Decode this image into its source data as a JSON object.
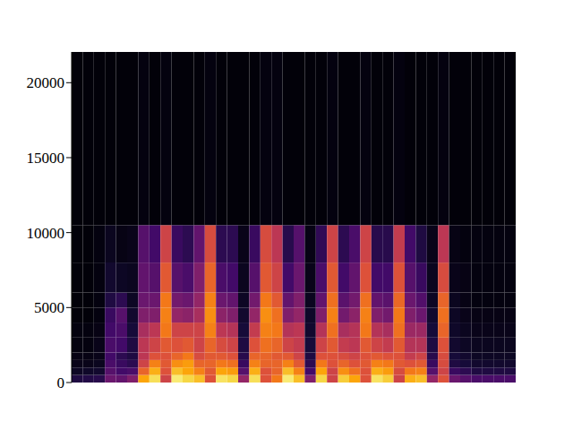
{
  "chart_data": {
    "type": "heatmap",
    "tick_labels": "y",
    "xlim": [
      0,
      4
    ],
    "ylim": [
      0,
      22050
    ],
    "yticks": [
      0,
      5000,
      10000,
      15000,
      20000
    ],
    "zlim": [
      0,
      1
    ],
    "x_bins": [
      0,
      0.1,
      0.2,
      0.3,
      0.4,
      0.5,
      0.6,
      0.7,
      0.8,
      0.9,
      1,
      1.1,
      1.2,
      1.3,
      1.4,
      1.5,
      1.6,
      1.7,
      1.8,
      1.9,
      2,
      2.1,
      2.2,
      2.3,
      2.4,
      2.5,
      2.6,
      2.7,
      2.8,
      2.9,
      3,
      3.1,
      3.2,
      3.3,
      3.4,
      3.5,
      3.6,
      3.7,
      3.8,
      3.9,
      4
    ],
    "y_bins": [
      0,
      500,
      1000,
      1500,
      2000,
      3000,
      4000,
      5000,
      6000,
      8000,
      10500,
      22050
    ],
    "cells": [
      [
        0.12,
        0.06,
        0.04,
        0.03,
        0.02,
        0.02,
        0.01,
        0.01,
        0.01,
        0.01,
        0.01
      ],
      [
        0.13,
        0.07,
        0.04,
        0.03,
        0.02,
        0.02,
        0.01,
        0.01,
        0.01,
        0.01,
        0.01
      ],
      [
        0.14,
        0.08,
        0.05,
        0.04,
        0.04,
        0.03,
        0.02,
        0.02,
        0.02,
        0.02,
        0.01
      ],
      [
        0.3,
        0.25,
        0.22,
        0.2,
        0.22,
        0.2,
        0.18,
        0.12,
        0.08,
        0.05,
        0.01
      ],
      [
        0.28,
        0.2,
        0.18,
        0.15,
        0.2,
        0.22,
        0.25,
        0.15,
        0.06,
        0.03,
        0.01
      ],
      [
        0.35,
        0.22,
        0.15,
        0.12,
        0.12,
        0.1,
        0.08,
        0.06,
        0.05,
        0.04,
        0.01
      ],
      [
        0.8,
        0.65,
        0.55,
        0.5,
        0.5,
        0.45,
        0.35,
        0.3,
        0.28,
        0.25,
        0.02
      ],
      [
        0.92,
        0.82,
        0.72,
        0.6,
        0.55,
        0.5,
        0.35,
        0.3,
        0.25,
        0.2,
        0.01
      ],
      [
        0.55,
        0.6,
        0.62,
        0.6,
        0.62,
        0.7,
        0.72,
        0.7,
        0.62,
        0.55,
        0.02
      ],
      [
        0.95,
        0.85,
        0.75,
        0.65,
        0.6,
        0.55,
        0.4,
        0.32,
        0.25,
        0.18,
        0.01
      ],
      [
        0.9,
        0.8,
        0.78,
        0.7,
        0.62,
        0.55,
        0.38,
        0.3,
        0.22,
        0.15,
        0.01
      ],
      [
        0.85,
        0.72,
        0.65,
        0.58,
        0.55,
        0.55,
        0.45,
        0.4,
        0.35,
        0.28,
        0.01
      ],
      [
        0.6,
        0.62,
        0.65,
        0.62,
        0.65,
        0.72,
        0.75,
        0.72,
        0.65,
        0.58,
        0.02
      ],
      [
        0.93,
        0.8,
        0.7,
        0.62,
        0.58,
        0.5,
        0.38,
        0.3,
        0.22,
        0.15,
        0.01
      ],
      [
        0.9,
        0.78,
        0.68,
        0.6,
        0.55,
        0.48,
        0.35,
        0.28,
        0.2,
        0.15,
        0.01
      ],
      [
        0.4,
        0.25,
        0.18,
        0.14,
        0.12,
        0.1,
        0.08,
        0.06,
        0.05,
        0.04,
        0.01
      ],
      [
        0.92,
        0.82,
        0.72,
        0.65,
        0.6,
        0.52,
        0.4,
        0.32,
        0.25,
        0.18,
        0.01
      ],
      [
        0.6,
        0.6,
        0.65,
        0.65,
        0.68,
        0.72,
        0.75,
        0.7,
        0.62,
        0.58,
        0.02
      ],
      [
        0.7,
        0.65,
        0.65,
        0.62,
        0.65,
        0.7,
        0.68,
        0.62,
        0.55,
        0.5,
        0.02
      ],
      [
        0.95,
        0.85,
        0.72,
        0.62,
        0.55,
        0.48,
        0.35,
        0.28,
        0.2,
        0.14,
        0.01
      ],
      [
        0.85,
        0.72,
        0.62,
        0.55,
        0.52,
        0.5,
        0.4,
        0.35,
        0.3,
        0.25,
        0.01
      ],
      [
        0.35,
        0.2,
        0.15,
        0.12,
        0.1,
        0.08,
        0.07,
        0.05,
        0.04,
        0.03,
        0.01
      ],
      [
        0.9,
        0.8,
        0.7,
        0.6,
        0.55,
        0.48,
        0.35,
        0.28,
        0.22,
        0.16,
        0.01
      ],
      [
        0.55,
        0.55,
        0.6,
        0.6,
        0.62,
        0.68,
        0.72,
        0.68,
        0.62,
        0.55,
        0.02
      ],
      [
        0.88,
        0.75,
        0.65,
        0.58,
        0.52,
        0.45,
        0.32,
        0.26,
        0.2,
        0.15,
        0.01
      ],
      [
        0.8,
        0.68,
        0.6,
        0.55,
        0.5,
        0.48,
        0.38,
        0.32,
        0.28,
        0.22,
        0.01
      ],
      [
        0.6,
        0.6,
        0.62,
        0.6,
        0.62,
        0.7,
        0.72,
        0.68,
        0.6,
        0.55,
        0.02
      ],
      [
        0.93,
        0.82,
        0.72,
        0.62,
        0.55,
        0.48,
        0.35,
        0.28,
        0.2,
        0.14,
        0.01
      ],
      [
        0.88,
        0.78,
        0.7,
        0.6,
        0.52,
        0.45,
        0.32,
        0.26,
        0.2,
        0.14,
        0.01
      ],
      [
        0.55,
        0.58,
        0.62,
        0.6,
        0.62,
        0.68,
        0.7,
        0.66,
        0.6,
        0.52,
        0.02
      ],
      [
        0.82,
        0.7,
        0.6,
        0.52,
        0.48,
        0.42,
        0.35,
        0.3,
        0.25,
        0.2,
        0.01
      ],
      [
        0.85,
        0.72,
        0.62,
        0.55,
        0.48,
        0.42,
        0.3,
        0.24,
        0.18,
        0.12,
        0.01
      ],
      [
        0.4,
        0.25,
        0.18,
        0.14,
        0.12,
        0.1,
        0.08,
        0.06,
        0.05,
        0.04,
        0.01
      ],
      [
        0.6,
        0.55,
        0.58,
        0.58,
        0.6,
        0.65,
        0.68,
        0.65,
        0.58,
        0.5,
        0.02
      ],
      [
        0.3,
        0.18,
        0.12,
        0.1,
        0.08,
        0.07,
        0.06,
        0.05,
        0.04,
        0.03,
        0.01
      ],
      [
        0.25,
        0.15,
        0.1,
        0.08,
        0.06,
        0.05,
        0.04,
        0.03,
        0.03,
        0.02,
        0.01
      ],
      [
        0.22,
        0.12,
        0.08,
        0.06,
        0.05,
        0.04,
        0.03,
        0.02,
        0.02,
        0.02,
        0.01
      ],
      [
        0.22,
        0.12,
        0.08,
        0.06,
        0.05,
        0.04,
        0.03,
        0.02,
        0.02,
        0.02,
        0.01
      ],
      [
        0.22,
        0.12,
        0.08,
        0.06,
        0.05,
        0.04,
        0.03,
        0.02,
        0.02,
        0.02,
        0.01
      ],
      [
        0.22,
        0.12,
        0.08,
        0.06,
        0.05,
        0.04,
        0.03,
        0.02,
        0.02,
        0.02,
        0.01
      ]
    ]
  }
}
